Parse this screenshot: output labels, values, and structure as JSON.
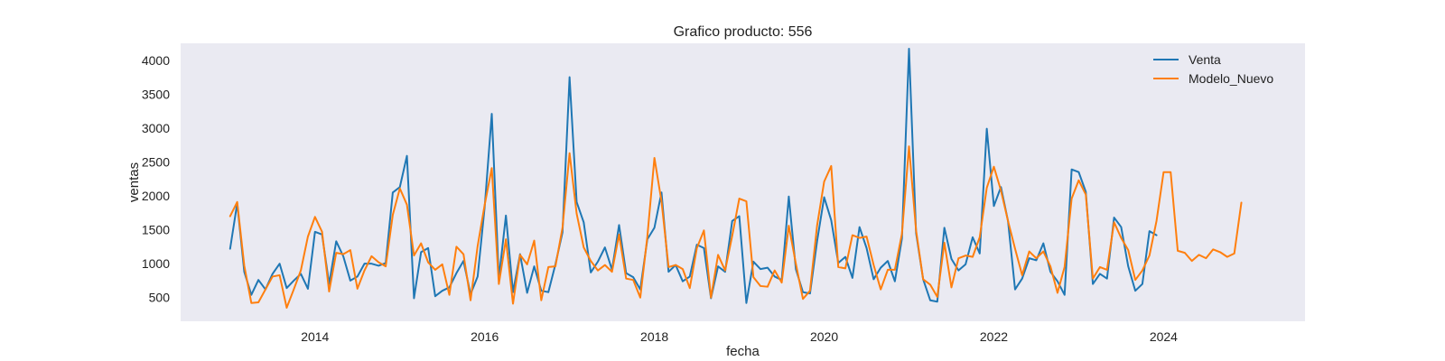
{
  "chart_data": {
    "type": "line",
    "title": "Grafico producto: 556",
    "xlabel": "fecha",
    "ylabel": "ventas",
    "x_ticks": [
      "2014",
      "2016",
      "2018",
      "2020",
      "2022",
      "2024"
    ],
    "y_ticks": [
      500,
      1000,
      1500,
      2000,
      2500,
      3000,
      3500,
      4000
    ],
    "xlim": [
      "2012-06-01",
      "2025-09-01"
    ],
    "ylim": [
      150,
      4250
    ],
    "x_unit": "months",
    "grid": false,
    "legend_position": "top-right",
    "background_color": "#eaeaf2",
    "series": [
      {
        "name": "Venta",
        "color": "#1f77b4",
        "start": "2013-01",
        "values": [
          1220,
          1890,
          880,
          540,
          760,
          620,
          850,
          1000,
          640,
          750,
          850,
          630,
          1470,
          1430,
          700,
          1330,
          1110,
          750,
          810,
          1000,
          1000,
          970,
          1010,
          2050,
          2130,
          2590,
          490,
          1170,
          1230,
          520,
          600,
          650,
          860,
          1040,
          550,
          810,
          1840,
          3210,
          780,
          1710,
          580,
          1140,
          570,
          960,
          600,
          580,
          990,
          1460,
          3750,
          1910,
          1610,
          870,
          1030,
          1240,
          910,
          1570,
          860,
          800,
          620,
          1360,
          1530,
          2050,
          880,
          980,
          740,
          810,
          1280,
          1230,
          490,
          960,
          880,
          1630,
          1700,
          420,
          1030,
          920,
          940,
          810,
          760,
          1990,
          920,
          580,
          560,
          1330,
          1980,
          1640,
          1010,
          1100,
          790,
          1540,
          1230,
          770,
          940,
          1040,
          740,
          1370,
          4170,
          1450,
          770,
          460,
          440,
          1530,
          1070,
          900,
          990,
          1390,
          1150,
          2990,
          1850,
          2130,
          1630,
          620,
          780,
          1080,
          1050,
          1300,
          880,
          740,
          540,
          2390,
          2350,
          2060,
          700,
          850,
          780,
          1680,
          1540,
          960,
          600,
          700,
          1480,
          1420
        ]
      },
      {
        "name": "Modelo_Nuevo",
        "color": "#ff7f0e",
        "start": "2013-01",
        "values": [
          1700,
          1910,
          970,
          420,
          430,
          620,
          810,
          830,
          350,
          620,
          900,
          1400,
          1690,
          1470,
          590,
          1160,
          1140,
          1200,
          630,
          900,
          1110,
          1020,
          960,
          1720,
          2110,
          1870,
          1120,
          1300,
          1020,
          910,
          990,
          540,
          1250,
          1140,
          460,
          1260,
          1870,
          2410,
          700,
          1360,
          410,
          1130,
          990,
          1340,
          460,
          950,
          960,
          1530,
          2630,
          1740,
          1240,
          1040,
          900,
          980,
          880,
          1430,
          780,
          760,
          500,
          1400,
          2560,
          1920,
          950,
          980,
          920,
          640,
          1230,
          1490,
          500,
          1130,
          900,
          1410,
          1960,
          1920,
          800,
          670,
          660,
          900,
          720,
          1560,
          1000,
          480,
          600,
          1560,
          2210,
          2440,
          950,
          930,
          1420,
          1380,
          1400,
          980,
          620,
          910,
          910,
          1440,
          2730,
          1490,
          770,
          690,
          510,
          1310,
          650,
          1080,
          1120,
          1100,
          1390,
          2120,
          2430,
          2080,
          1630,
          1220,
          830,
          1180,
          1080,
          1180,
          960,
          570,
          950,
          1960,
          2230,
          2020,
          780,
          950,
          910,
          1610,
          1380,
          1200,
          760,
          900,
          1120,
          1630,
          2350,
          2350,
          1190,
          1160,
          1040,
          1130,
          1080,
          1210,
          1170,
          1100,
          1150,
          1900
        ]
      }
    ]
  }
}
